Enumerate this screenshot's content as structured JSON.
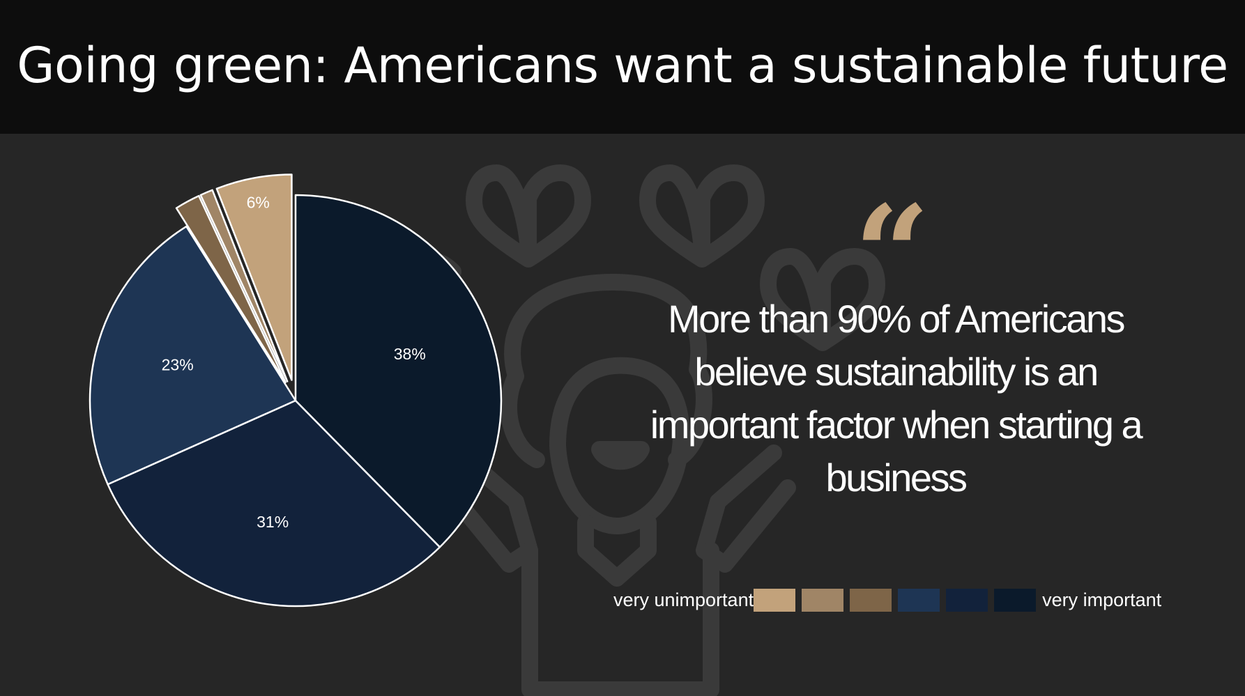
{
  "title": "Going green: Americans want a sustainable future",
  "quote": {
    "mark": "“",
    "text": "More than 90% of Americans believe sustainability is an important factor when starting a business"
  },
  "legend": {
    "left_label": "very unimportant",
    "right_label": "very important"
  },
  "icons": {
    "background": "person-holding-hearts-icon"
  },
  "colors": {
    "page_bg": "#262626",
    "header_bg": "#0d0d0d",
    "accent": "#c2a27b"
  },
  "chart_data": {
    "type": "pie",
    "title": "",
    "categories": [
      "1",
      "2",
      "3",
      "4",
      "5",
      "6"
    ],
    "values": [
      6,
      1,
      2,
      23,
      31,
      38
    ],
    "labels": [
      "6%",
      "",
      "",
      "23%",
      "31%",
      "38%"
    ],
    "colors": [
      "#c2a27b",
      "#a08566",
      "#7e6548",
      "#1e3554",
      "#12223b",
      "#0b1a2b"
    ],
    "exploded": [
      true,
      true,
      true,
      false,
      false,
      false
    ],
    "legend_position": "bottom-right",
    "legend_scale": [
      "very unimportant",
      "very important"
    ]
  }
}
